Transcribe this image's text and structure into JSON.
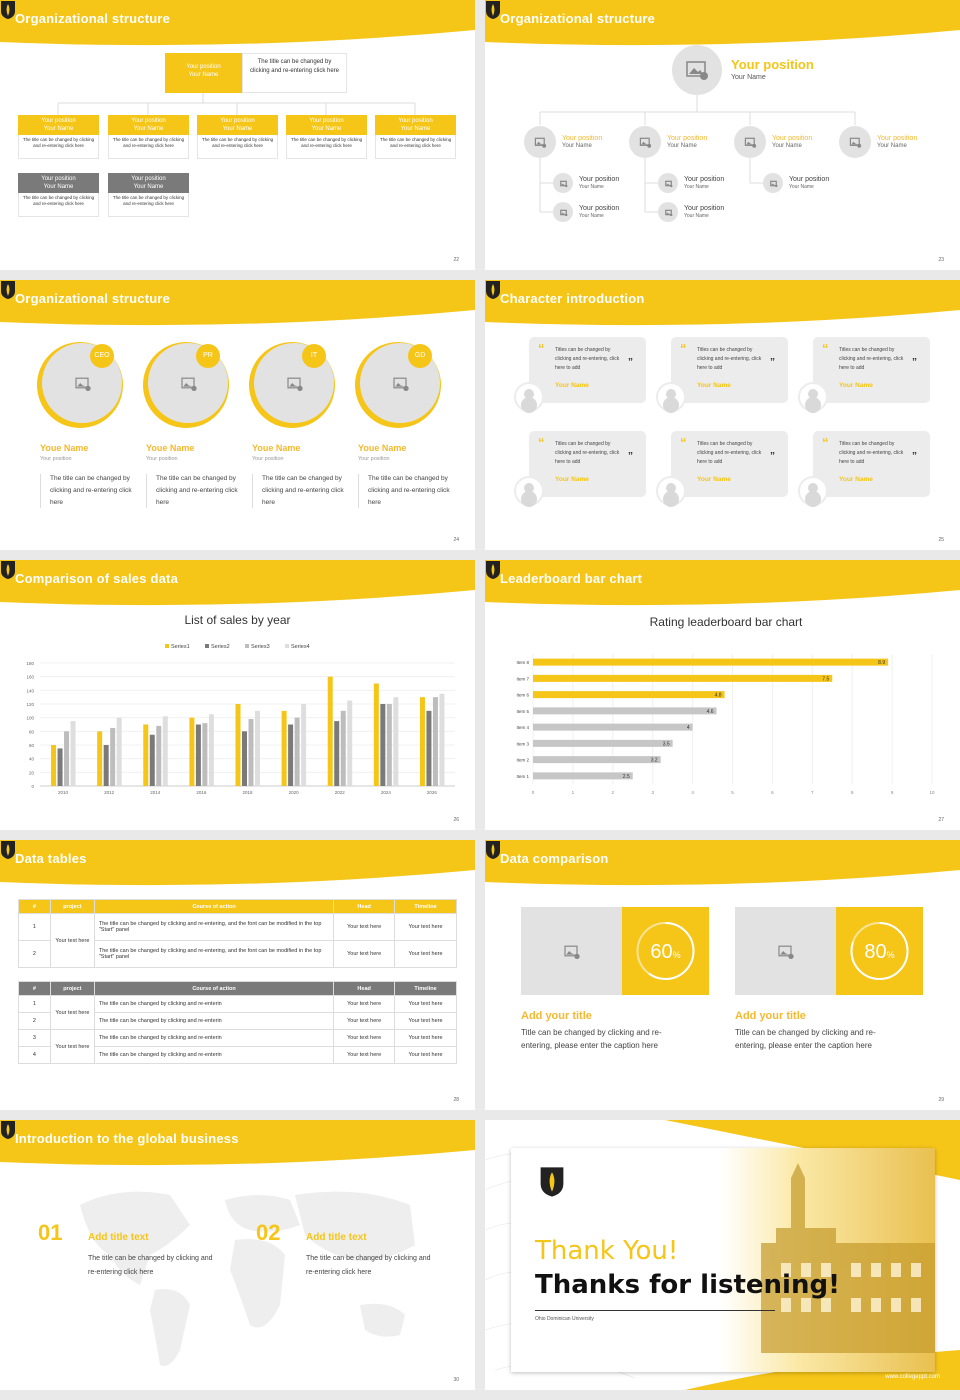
{
  "colors": {
    "accent": "#f5c518",
    "gray": "#7a7a7a",
    "light": "#e3e2e2"
  },
  "slides": [
    {
      "title": "Organizational structure",
      "page": "22",
      "top": {
        "pos": "Your position",
        "name": "Your Name",
        "desc": "The title can be changed by clicking and re-entering click here"
      },
      "row_pos": "Your position",
      "row_name": "Your Name",
      "row_desc": "The title can be changed by clicking and re-entering click here"
    },
    {
      "title": "Organizational structure",
      "page": "23",
      "top": {
        "pos": "Your position",
        "name": "Your Name"
      },
      "pos": "Your position",
      "name": "Your Name"
    },
    {
      "title": "Organizational structure",
      "page": "24",
      "people": [
        {
          "badge": "CEO",
          "name": "Youe Name",
          "pos": "Your position",
          "desc": "The title can be changed by clicking and re-entering click here"
        },
        {
          "badge": "PR",
          "name": "Youe Name",
          "pos": "Your position",
          "desc": "The title can be changed by clicking and re-entering click here"
        },
        {
          "badge": "IT",
          "name": "Youe Name",
          "pos": "Your position",
          "desc": "The title can be changed by clicking and re-entering click here"
        },
        {
          "badge": "GD",
          "name": "Youe Name",
          "pos": "Your position",
          "desc": "The title can be changed by clicking and re-entering click here"
        }
      ]
    },
    {
      "title": "Character introduction",
      "page": "25",
      "quote": "Titles can be changed by clicking and re-entering, click here to add",
      "name": "Your Name"
    },
    {
      "title": "Comparison of sales data",
      "page": "26"
    },
    {
      "title": "Leaderboard bar chart",
      "page": "27"
    },
    {
      "title": "Data tables",
      "page": "28",
      "t1": {
        "headers": [
          "#",
          "project",
          "Course of action",
          "Head",
          "Timeline"
        ],
        "rows": [
          {
            "n": "1",
            "action": "The title can be changed by clicking and re-entering, and the font can be modified in the top \"Start\" panel",
            "head": "Your text here",
            "time": "Your text here"
          },
          {
            "n": "2",
            "action": "The title can be changed by clicking and re-entering, and the font can be modified in the top \"Start\" panel",
            "head": "Your text here",
            "time": "Your text here"
          }
        ],
        "project": "Your text here"
      },
      "t2": {
        "headers": [
          "#",
          "project",
          "Course of action",
          "Head",
          "Timeline"
        ],
        "action": "The title can be changed by clicking and re-enterin",
        "cell": "Your text here",
        "project": "Your text here",
        "nums": [
          "1",
          "2",
          "3",
          "4"
        ]
      }
    },
    {
      "title": "Data comparison",
      "page": "29",
      "cards": [
        {
          "pct": "60",
          "unit": "%",
          "title": "Add your title",
          "desc": "Title can be changed by clicking and re-entering, please enter the caption here"
        },
        {
          "pct": "80",
          "unit": "%",
          "title": "Add your title",
          "desc": "Title can be changed by clicking and re-entering, please enter the caption here"
        }
      ]
    },
    {
      "title": "Introduction to the global business",
      "page": "30",
      "items": [
        {
          "num": "01",
          "title": "Add title text",
          "desc": "The title can be changed by clicking and re-entering click here"
        },
        {
          "num": "02",
          "title": "Add title text",
          "desc": "The title can be changed by clicking and re-entering click here"
        }
      ]
    },
    {
      "thanks": "Thank You!",
      "listening": "Thanks for listening!",
      "university": "Ohio Dominican University",
      "url": "www.collegeppt.com"
    }
  ],
  "chart_data": [
    {
      "type": "bar",
      "title": "List of sales by year",
      "categories": [
        "2010",
        "2012",
        "2014",
        "2016",
        "2018",
        "2020",
        "2022",
        "2024",
        "2026"
      ],
      "series": [
        {
          "name": "Series1",
          "color": "#f5c518",
          "values": [
            60,
            80,
            90,
            100,
            120,
            110,
            160,
            150,
            130
          ]
        },
        {
          "name": "Series2",
          "color": "#7a7a7a",
          "values": [
            55,
            60,
            75,
            90,
            80,
            90,
            95,
            120,
            110
          ]
        },
        {
          "name": "Series3",
          "color": "#bdbdbd",
          "values": [
            80,
            85,
            88,
            92,
            98,
            100,
            110,
            120,
            130
          ]
        },
        {
          "name": "Series4",
          "color": "#dedede",
          "values": [
            95,
            100,
            102,
            105,
            110,
            120,
            125,
            130,
            135
          ]
        }
      ],
      "ylim": [
        0,
        160
      ],
      "yticks": [
        "0",
        "20",
        "40",
        "60",
        "80",
        "100",
        "120",
        "140",
        "160",
        "180"
      ],
      "legend": "top"
    },
    {
      "type": "bar",
      "orientation": "horizontal",
      "title": "Rating leaderboard bar chart",
      "categories": [
        "Item 8",
        "Item 7",
        "Item 6",
        "Item 5",
        "Item 4",
        "Item 3",
        "Item 2",
        "Item 1"
      ],
      "values": [
        8.9,
        7.5,
        4.8,
        4.6,
        4,
        3.5,
        3.2,
        2.5
      ],
      "highlight_count": 3,
      "xlim": [
        0,
        10
      ],
      "xticks": [
        "0",
        "1",
        "2",
        "3",
        "4",
        "5",
        "6",
        "7",
        "8",
        "9",
        "10"
      ]
    }
  ]
}
